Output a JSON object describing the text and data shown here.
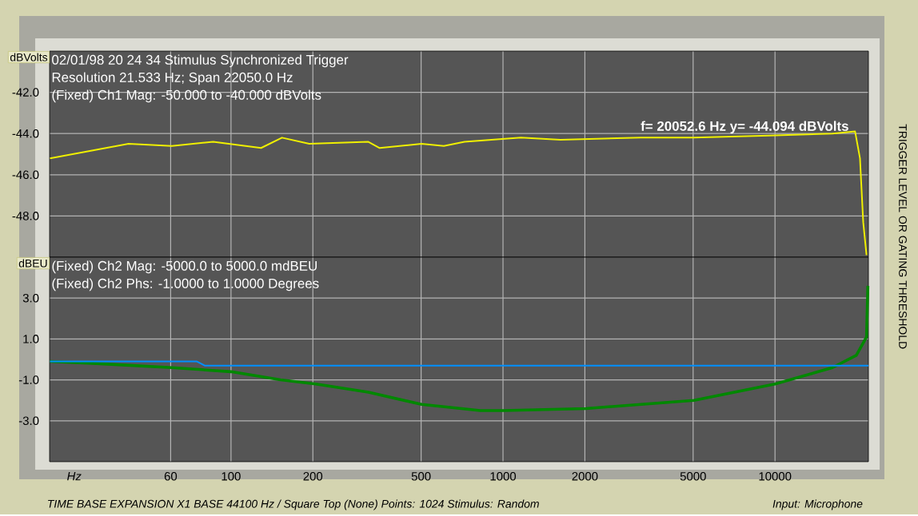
{
  "chart_data": [
    {
      "type": "line",
      "title": "02/01/98 20 24 34  Stimulus Synchronized Trigger",
      "subtitle": "Resolution 21.533 Hz; Span 22050.0 Hz",
      "ylabel": "dBVolts",
      "log": "x",
      "xlim": [
        21.533,
        22050
      ],
      "xticks": [
        60,
        100,
        200,
        500,
        1000,
        2000,
        5000,
        10000
      ],
      "ylim": [
        -50,
        -40
      ],
      "yticks": [
        {
          "value": -48,
          "label": "-48.0"
        },
        {
          "value": -46,
          "label": "-46.0"
        },
        {
          "value": -44,
          "label": "-44.0"
        },
        {
          "value": -42,
          "label": "-42.0"
        }
      ],
      "tick_labels": "y",
      "grid": true,
      "annotations": [
        "(Fixed) Ch1 Mag: -50.000 to -40.000 dBVolts",
        {
          "text": "f= 20052.6 Hz  y= -44.094 dBVolts",
          "x": 20052.6,
          "y": -44.094
        },
        "TRIGGER LEVEL OR GATING THRESHOLD"
      ],
      "series": [
        {
          "color": "#f0f000",
          "x": [
            21.6,
            42,
            60.6,
            86,
            129,
            154,
            194,
            320,
            352,
            502,
            606,
            722,
            1164,
            1627,
            3208,
            5035,
            9480,
            16260,
            19700,
            20530,
            21100,
            21700
          ],
          "values": [
            -45.2,
            -44.5,
            -44.6,
            -44.4,
            -44.7,
            -44.2,
            -44.5,
            -44.4,
            -44.7,
            -44.5,
            -44.6,
            -44.4,
            -44.2,
            -44.3,
            -44.2,
            -44.2,
            -44.1,
            -44.0,
            -43.9,
            -45.2,
            -48.3,
            -49.9
          ]
        }
      ]
    },
    {
      "type": "line",
      "xlabel": "Hz",
      "ylabel": "dBEU",
      "log": "x",
      "xlim": [
        21.533,
        22050
      ],
      "xticks": [
        60,
        100,
        200,
        500,
        1000,
        2000,
        5000,
        10000
      ],
      "ylim": [
        -5,
        5
      ],
      "yticks": [
        {
          "value": -3,
          "label": "-3.0"
        },
        {
          "value": -1,
          "label": "-1.0"
        },
        {
          "value": 1,
          "label": "1.0"
        },
        {
          "value": 3,
          "label": "3.0"
        }
      ],
      "grid": true,
      "annotations": [
        "(Fixed) Ch2 Mag: -5000.0 to 5000.0 mdBEU",
        "(Fixed) Ch2 Phs: -1.0000 to 1.0000 Degrees",
        "TIME BASE EXPANSION X1   BASE 44100 Hz / Square Top (None)   Points: 1024   Stimulus: Random",
        "Input: Microphone"
      ],
      "series": [
        {
          "color": "#008800",
          "x": [
            21.6,
            32,
            60.6,
            100,
            152,
            205,
            320,
            502,
            825,
            1000,
            2020,
            5035,
            10000,
            16260,
            19900,
            21700,
            21950
          ],
          "values": [
            -0.1,
            -0.2,
            -0.4,
            -0.6,
            -1.0,
            -1.2,
            -1.6,
            -2.2,
            -2.5,
            -2.5,
            -2.4,
            -2.0,
            -1.2,
            -0.4,
            0.2,
            1.1,
            3.6
          ]
        },
        {
          "color": "#0090ff",
          "x": [
            21.6,
            75,
            80,
            22050
          ],
          "values": [
            -0.1,
            -0.1,
            -0.3,
            -0.3
          ]
        }
      ]
    }
  ]
}
